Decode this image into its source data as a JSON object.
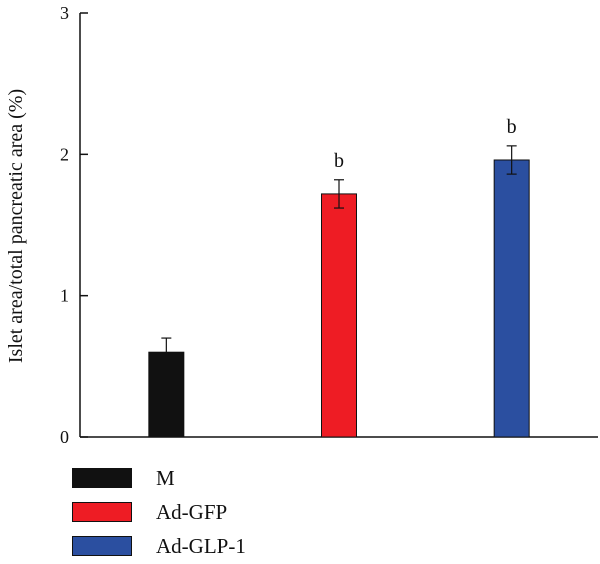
{
  "chart_data": {
    "type": "bar",
    "categories": [
      "M",
      "Ad-GFP",
      "Ad-GLP-1"
    ],
    "values": [
      0.6,
      1.72,
      1.96
    ],
    "errors": [
      0.1,
      0.1,
      0.1
    ],
    "annotations": [
      "",
      "b",
      "b"
    ],
    "colors": [
      "#111111",
      "#ee1c24",
      "#2b4fa0"
    ],
    "title": "",
    "xlabel": "",
    "ylabel": "Islet area/total pancreatic area (%)",
    "ylim": [
      0,
      3
    ],
    "yticks": [
      "0",
      "1",
      "2",
      "3"
    ],
    "grid": false,
    "legend_position": "bottom-left"
  },
  "legend": [
    {
      "label": "M",
      "color": "#111111"
    },
    {
      "label": "Ad-GFP",
      "color": "#ee1c24"
    },
    {
      "label": "Ad-GLP-1",
      "color": "#2b4fa0"
    }
  ]
}
